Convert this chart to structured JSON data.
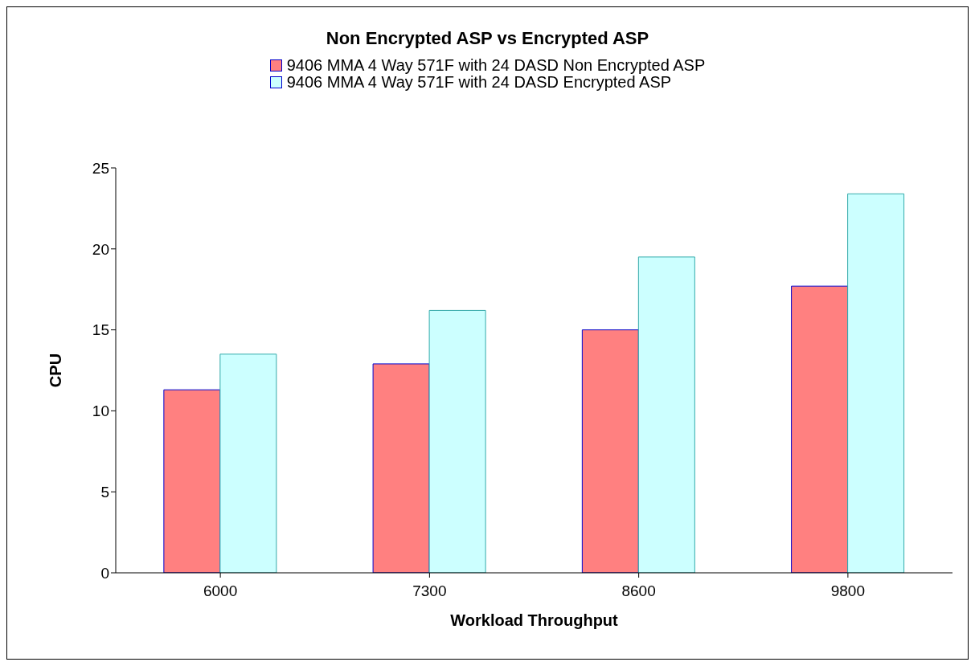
{
  "chart_data": {
    "type": "bar",
    "title": "Non Encrypted ASP vs Encrypted ASP",
    "xlabel": "Workload Throughput",
    "ylabel": "CPU",
    "categories": [
      "6000",
      "7300",
      "8600",
      "9800"
    ],
    "series": [
      {
        "name": "9406 MMA 4 Way 571F with 24 DASD Non Encrypted ASP",
        "color": "#ff8080",
        "values": [
          11.3,
          12.9,
          15.0,
          17.7
        ]
      },
      {
        "name": "9406 MMA 4 Way 571F with 24 DASD Encrypted ASP",
        "color": "#ccffff",
        "values": [
          13.5,
          16.2,
          19.5,
          23.4
        ]
      }
    ],
    "ylim": [
      0,
      25
    ],
    "yticks": [
      0,
      5,
      10,
      15,
      20,
      25
    ],
    "grid": false,
    "legend": "top"
  }
}
